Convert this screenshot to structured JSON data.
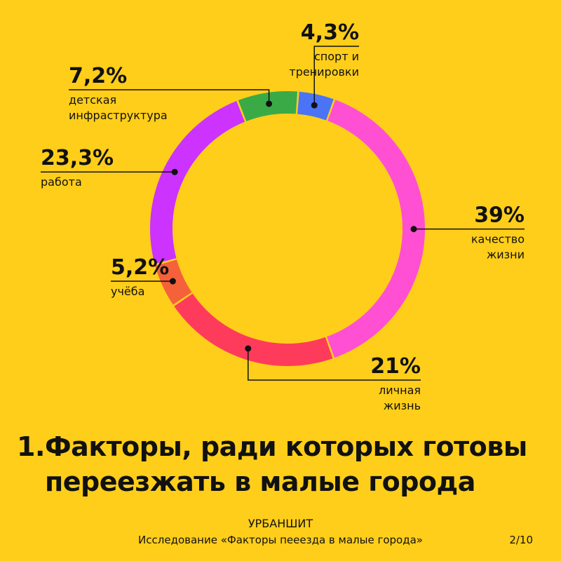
{
  "chart_data": {
    "type": "pie",
    "variant": "donut",
    "slices": [
      {
        "value": 39,
        "label": "39%",
        "name_lines": [
          "качество",
          "жизни"
        ],
        "color": "#FF4FD2"
      },
      {
        "value": 21,
        "label": "21%",
        "name_lines": [
          "личная",
          "жизнь"
        ],
        "color": "#FF3B5C"
      },
      {
        "value": 5.2,
        "label": "5,2%",
        "name_lines": [
          "учёба"
        ],
        "color": "#F4613A"
      },
      {
        "value": 23.3,
        "label": "23,3%",
        "name_lines": [
          "работа"
        ],
        "color": "#CC33FF"
      },
      {
        "value": 7.2,
        "label": "7,2%",
        "name_lines": [
          "детская",
          "инфраструктура"
        ],
        "color": "#3AAA47"
      },
      {
        "value": 4.3,
        "label": "4,3%",
        "name_lines": [
          "спорт и",
          "тренировки"
        ],
        "color": "#4A74F5"
      }
    ]
  },
  "title": {
    "number": "1.",
    "line1": "Факторы, ради которых готовы",
    "line2": "переезжать в малые города"
  },
  "footer": {
    "brand": "УРБАНШИТ",
    "subtitle": "Исследование «Факторы пееезда в малые города»",
    "page": "2/10"
  },
  "colors": {
    "background": "#FFCE1A",
    "text": "#111111"
  }
}
